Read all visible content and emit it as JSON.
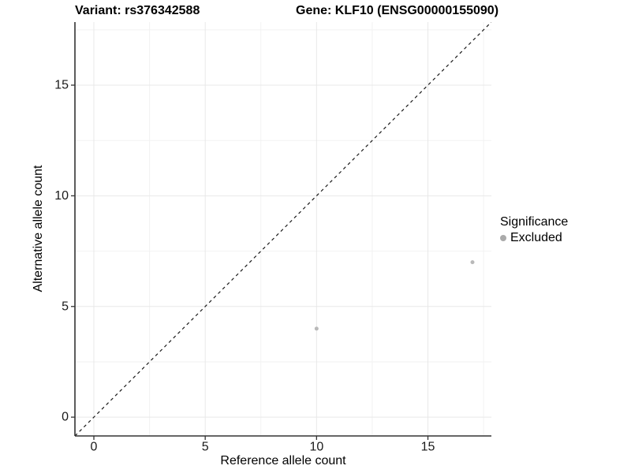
{
  "header": {
    "variant_title": "Variant: rs376342588",
    "gene_title": "Gene: KLF10 (ENSG00000155090)"
  },
  "axes": {
    "x_title": "Reference allele count",
    "y_title": "Alternative allele count"
  },
  "legend": {
    "title": "Significance",
    "items": [
      {
        "label": "Excluded",
        "color": "#aaaaaa"
      }
    ]
  },
  "colors": {
    "background": "#ffffff",
    "grid_major": "#e8e8e8",
    "grid_minor": "#f2f2f2",
    "axis_line": "#333333",
    "tick_mark": "#333333",
    "tick_text": "#1a1a1a",
    "abline": "#1a1a1a",
    "point": "#b9b9b9"
  },
  "chart_data": {
    "type": "scatter",
    "title": "Variant: rs376342588 — Gene: KLF10 (ENSG00000155090)",
    "xlabel": "Reference allele count",
    "ylabel": "Alternative allele count",
    "xlim": [
      -0.85,
      17.85
    ],
    "ylim": [
      -0.85,
      17.85
    ],
    "x_ticks": [
      0,
      5,
      10,
      15
    ],
    "y_ticks": [
      0,
      5,
      10,
      15
    ],
    "x_minor": [
      2.5,
      7.5,
      12.5,
      17.5
    ],
    "y_minor": [
      2.5,
      7.5,
      12.5,
      17.5
    ],
    "grid": true,
    "legend_position": "right",
    "series": [
      {
        "name": "Excluded",
        "color": "#b9b9b9",
        "point_radius": 2.5,
        "points": [
          {
            "x": 10,
            "y": 4
          },
          {
            "x": 17,
            "y": 7
          }
        ]
      }
    ],
    "abline": {
      "slope": 1,
      "intercept": 0,
      "style": "dashed"
    }
  }
}
